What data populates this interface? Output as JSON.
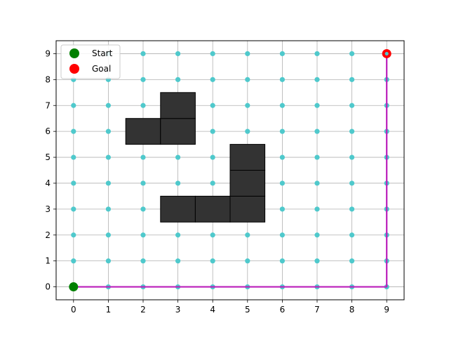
{
  "chart_data": {
    "type": "scatter",
    "title": "",
    "xlabel": "",
    "ylabel": "",
    "xlim": [
      -0.5,
      9.5
    ],
    "ylim": [
      -0.5,
      9.5
    ],
    "xticks": [
      "0",
      "1",
      "2",
      "3",
      "4",
      "5",
      "6",
      "7",
      "8",
      "9"
    ],
    "yticks": [
      "0",
      "1",
      "2",
      "3",
      "4",
      "5",
      "6",
      "7",
      "8",
      "9"
    ],
    "grid": true,
    "legend": {
      "placement": "top-left",
      "entries": [
        {
          "label": "Start",
          "color": "#008000"
        },
        {
          "label": "Goal",
          "color": "#ff0000"
        }
      ]
    },
    "obstacles": [
      [
        2,
        6
      ],
      [
        3,
        6
      ],
      [
        3,
        7
      ],
      [
        3,
        3
      ],
      [
        4,
        3
      ],
      [
        5,
        3
      ],
      [
        5,
        4
      ],
      [
        5,
        5
      ]
    ],
    "obstacle_color": "#333333",
    "free_node_color": "#4fc9cc",
    "start": [
      0,
      0
    ],
    "goal": [
      9,
      9
    ],
    "path": [
      [
        0,
        0
      ],
      [
        1,
        0
      ],
      [
        2,
        0
      ],
      [
        3,
        0
      ],
      [
        4,
        0
      ],
      [
        5,
        0
      ],
      [
        6,
        0
      ],
      [
        7,
        0
      ],
      [
        8,
        0
      ],
      [
        9,
        0
      ],
      [
        9,
        1
      ],
      [
        9,
        2
      ],
      [
        9,
        3
      ],
      [
        9,
        4
      ],
      [
        9,
        5
      ],
      [
        9,
        6
      ],
      [
        9,
        7
      ],
      [
        9,
        8
      ],
      [
        9,
        9
      ]
    ],
    "path_color": "#bb1fbb"
  }
}
